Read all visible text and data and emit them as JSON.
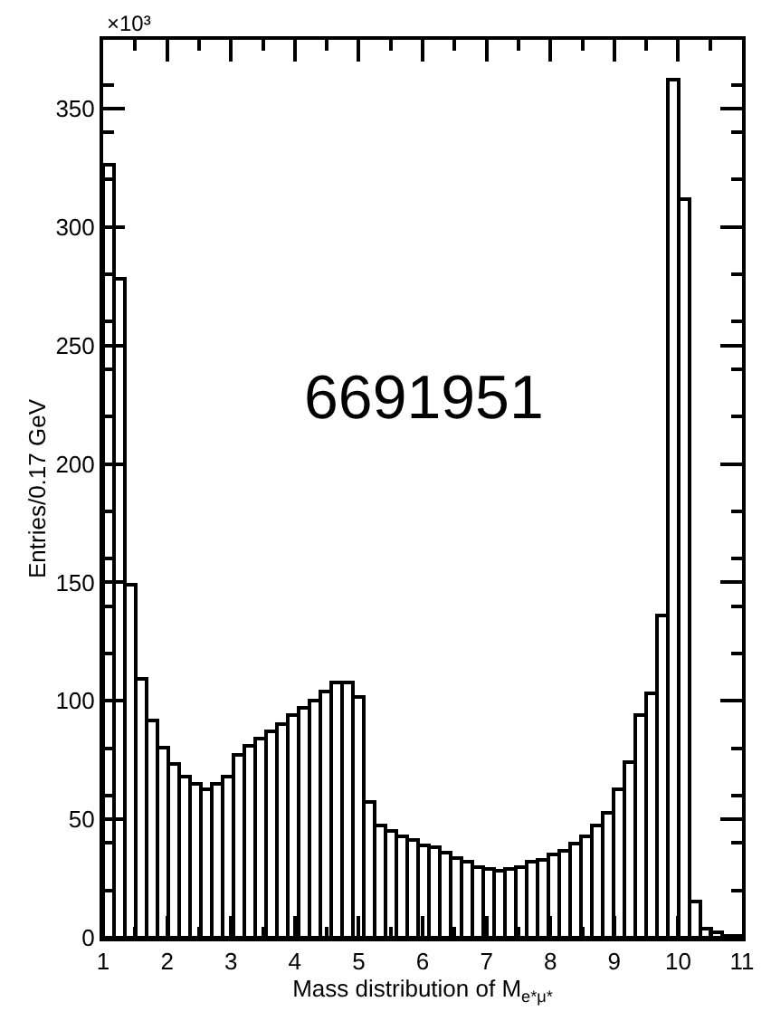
{
  "chart_data": {
    "type": "histogram",
    "bins": [
      1.0,
      1.17,
      1.34,
      1.51,
      1.68,
      1.85,
      2.02,
      2.19,
      2.36,
      2.53,
      2.7,
      2.87,
      3.04,
      3.21,
      3.38,
      3.55,
      3.72,
      3.89,
      4.06,
      4.23,
      4.4,
      4.57,
      4.74,
      4.91,
      5.08,
      5.25,
      5.42,
      5.59,
      5.76,
      5.93,
      6.1,
      6.27,
      6.44,
      6.61,
      6.78,
      6.95,
      7.12,
      7.29,
      7.46,
      7.63,
      7.8,
      7.97,
      8.14,
      8.31,
      8.48,
      8.65,
      8.82,
      8.99,
      9.16,
      9.33,
      9.5,
      9.67,
      9.84,
      10.01,
      10.18,
      10.35,
      10.52,
      10.69,
      10.86,
      11.0
    ],
    "values": [
      326,
      278,
      149,
      109,
      92,
      80,
      73,
      68,
      65,
      63,
      65,
      68,
      77,
      81,
      84,
      87,
      90,
      94,
      97,
      100,
      104,
      108,
      108,
      102,
      57,
      47,
      45,
      43,
      41,
      39,
      38,
      36,
      34,
      32,
      30,
      29,
      28,
      29,
      30,
      32,
      33,
      35,
      37,
      40,
      43,
      47,
      53,
      63,
      74,
      94,
      103,
      136,
      362,
      312,
      15,
      4,
      2,
      1,
      1
    ],
    "color": "#000000",
    "xlabel": "Mass distribution of M$_{e*μ*}$",
    "ylabel": "Entries/0.17 GeV",
    "annotations": [
      "×10³",
      "6691951"
    ],
    "xlim": [
      1,
      11
    ],
    "ylim": [
      0,
      379
    ],
    "xticks": [
      1,
      2,
      3,
      4,
      5,
      6,
      7,
      8,
      9,
      10,
      11
    ],
    "yticks": [
      0,
      50,
      100,
      150,
      200,
      250,
      300,
      350
    ]
  }
}
